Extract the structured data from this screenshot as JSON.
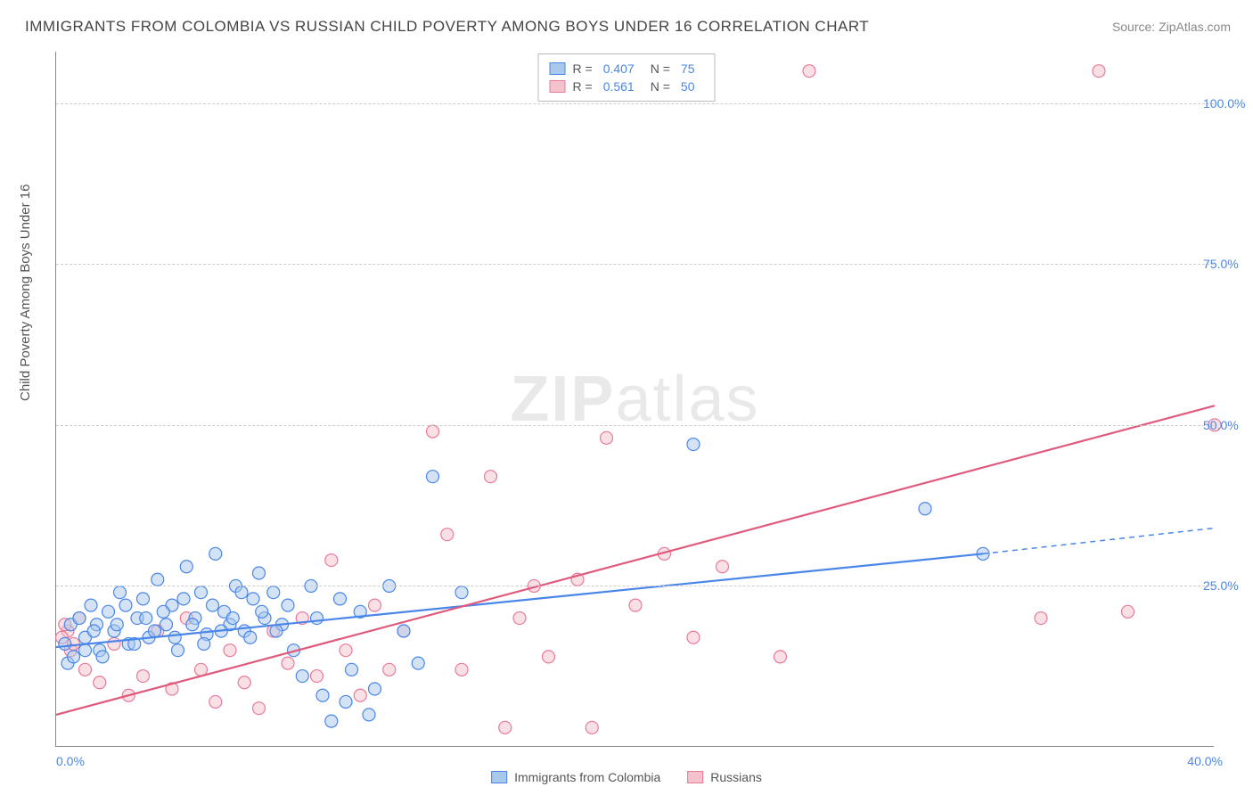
{
  "title": "IMMIGRANTS FROM COLOMBIA VS RUSSIAN CHILD POVERTY AMONG BOYS UNDER 16 CORRELATION CHART",
  "source": "Source: ZipAtlas.com",
  "ylabel": "Child Poverty Among Boys Under 16",
  "watermark_bold": "ZIP",
  "watermark_rest": "atlas",
  "colors": {
    "blue_fill": "#a8c8ec",
    "blue_stroke": "#4a86e8",
    "pink_fill": "#f4c2cc",
    "pink_stroke": "#e87a9a",
    "pink_line": "#e05a7d",
    "grid": "#cccccc",
    "axis": "#888888",
    "text": "#555555",
    "tick": "#4a86e8"
  },
  "chart": {
    "type": "scatter",
    "xlim": [
      0,
      40
    ],
    "ylim": [
      0,
      108
    ],
    "yticks": [
      {
        "v": 25,
        "label": "25.0%"
      },
      {
        "v": 50,
        "label": "50.0%"
      },
      {
        "v": 75,
        "label": "75.0%"
      },
      {
        "v": 100,
        "label": "100.0%"
      }
    ],
    "xtick_left": "0.0%",
    "xtick_right": "40.0%",
    "marker_opacity": 0.5,
    "marker_radius": 7,
    "line_width": 2.2
  },
  "series": [
    {
      "name": "Immigrants from Colombia",
      "color_fill": "#a8c8ec",
      "color_stroke": "#4a86e8",
      "R": "0.407",
      "N": "75",
      "trend_solid": {
        "x1": 0,
        "y1": 15.5,
        "x2": 32,
        "y2": 30
      },
      "trend_dashed": {
        "x1": 32,
        "y1": 30,
        "x2": 40,
        "y2": 34
      },
      "points": [
        [
          0.3,
          16
        ],
        [
          0.5,
          19
        ],
        [
          0.4,
          13
        ],
        [
          0.8,
          20
        ],
        [
          0.6,
          14
        ],
        [
          1.0,
          17
        ],
        [
          1.2,
          22
        ],
        [
          1.5,
          15
        ],
        [
          1.4,
          19
        ],
        [
          1.8,
          21
        ],
        [
          2.0,
          18
        ],
        [
          2.2,
          24
        ],
        [
          2.5,
          16
        ],
        [
          2.8,
          20
        ],
        [
          3.0,
          23
        ],
        [
          3.2,
          17
        ],
        [
          3.5,
          26
        ],
        [
          3.8,
          19
        ],
        [
          4.0,
          22
        ],
        [
          4.2,
          15
        ],
        [
          4.5,
          28
        ],
        [
          4.8,
          20
        ],
        [
          5.0,
          24
        ],
        [
          5.2,
          17.5
        ],
        [
          5.5,
          30
        ],
        [
          5.8,
          21
        ],
        [
          6.0,
          19
        ],
        [
          6.2,
          25
        ],
        [
          6.5,
          18
        ],
        [
          6.8,
          23
        ],
        [
          7.0,
          27
        ],
        [
          7.2,
          20
        ],
        [
          7.5,
          24
        ],
        [
          7.8,
          19
        ],
        [
          8.0,
          22
        ],
        [
          8.2,
          15
        ],
        [
          8.5,
          11
        ],
        [
          8.8,
          25
        ],
        [
          9.0,
          20
        ],
        [
          9.2,
          8
        ],
        [
          9.5,
          4
        ],
        [
          9.8,
          23
        ],
        [
          10.0,
          7
        ],
        [
          10.2,
          12
        ],
        [
          10.5,
          21
        ],
        [
          10.8,
          5
        ],
        [
          11.0,
          9
        ],
        [
          11.5,
          25
        ],
        [
          12.0,
          18
        ],
        [
          12.5,
          13
        ],
        [
          13.0,
          42
        ],
        [
          14.0,
          24
        ],
        [
          22.0,
          47
        ],
        [
          30.0,
          37
        ],
        [
          32.0,
          30
        ],
        [
          1.0,
          15
        ],
        [
          1.3,
          18
        ],
        [
          1.6,
          14
        ],
        [
          2.1,
          19
        ],
        [
          2.4,
          22
        ],
        [
          2.7,
          16
        ],
        [
          3.1,
          20
        ],
        [
          3.4,
          18
        ],
        [
          3.7,
          21
        ],
        [
          4.1,
          17
        ],
        [
          4.4,
          23
        ],
        [
          4.7,
          19
        ],
        [
          5.1,
          16
        ],
        [
          5.4,
          22
        ],
        [
          5.7,
          18
        ],
        [
          6.1,
          20
        ],
        [
          6.4,
          24
        ],
        [
          6.7,
          17
        ],
        [
          7.1,
          21
        ],
        [
          7.6,
          18
        ]
      ]
    },
    {
      "name": "Russians",
      "color_fill": "#f4c2cc",
      "color_stroke": "#e87a9a",
      "R": "0.561",
      "N": "50",
      "trend_solid": {
        "x1": 0,
        "y1": 5,
        "x2": 40,
        "y2": 53
      },
      "points": [
        [
          0.4,
          18
        ],
        [
          0.5,
          15
        ],
        [
          0.8,
          20
        ],
        [
          1.0,
          12
        ],
        [
          1.5,
          10
        ],
        [
          2.0,
          16
        ],
        [
          2.5,
          8
        ],
        [
          3.0,
          11
        ],
        [
          3.5,
          18
        ],
        [
          4.0,
          9
        ],
        [
          4.5,
          20
        ],
        [
          5.0,
          12
        ],
        [
          5.5,
          7
        ],
        [
          6.0,
          15
        ],
        [
          6.5,
          10
        ],
        [
          7.0,
          6
        ],
        [
          7.5,
          18
        ],
        [
          8.0,
          13
        ],
        [
          8.5,
          20
        ],
        [
          9.0,
          11
        ],
        [
          9.5,
          29
        ],
        [
          10.0,
          15
        ],
        [
          10.5,
          8
        ],
        [
          11.0,
          22
        ],
        [
          11.5,
          12
        ],
        [
          12.0,
          18
        ],
        [
          13.0,
          49
        ],
        [
          13.5,
          33
        ],
        [
          14.0,
          12
        ],
        [
          15.0,
          42
        ],
        [
          15.5,
          3
        ],
        [
          16.0,
          20
        ],
        [
          16.5,
          25
        ],
        [
          17.0,
          14
        ],
        [
          18.0,
          26
        ],
        [
          18.5,
          3
        ],
        [
          19.0,
          48
        ],
        [
          20.0,
          22
        ],
        [
          21.0,
          30
        ],
        [
          22.0,
          17
        ],
        [
          23.0,
          28
        ],
        [
          25.0,
          14
        ],
        [
          26.0,
          105
        ],
        [
          34.0,
          20
        ],
        [
          36.0,
          105
        ],
        [
          37.0,
          21
        ],
        [
          40.0,
          50
        ],
        [
          0.3,
          19
        ],
        [
          0.2,
          17
        ],
        [
          0.6,
          16
        ]
      ]
    }
  ],
  "legend_top": [
    {
      "swatch": 0,
      "R_label": "R =",
      "R_value": "0.407",
      "N_label": "N =",
      "N_value": "75"
    },
    {
      "swatch": 1,
      "R_label": "R =",
      "R_value": "0.561",
      "N_label": "N =",
      "N_value": "50"
    }
  ],
  "legend_bottom": [
    {
      "swatch": 0,
      "label": "Immigrants from Colombia"
    },
    {
      "swatch": 1,
      "label": "Russians"
    }
  ]
}
